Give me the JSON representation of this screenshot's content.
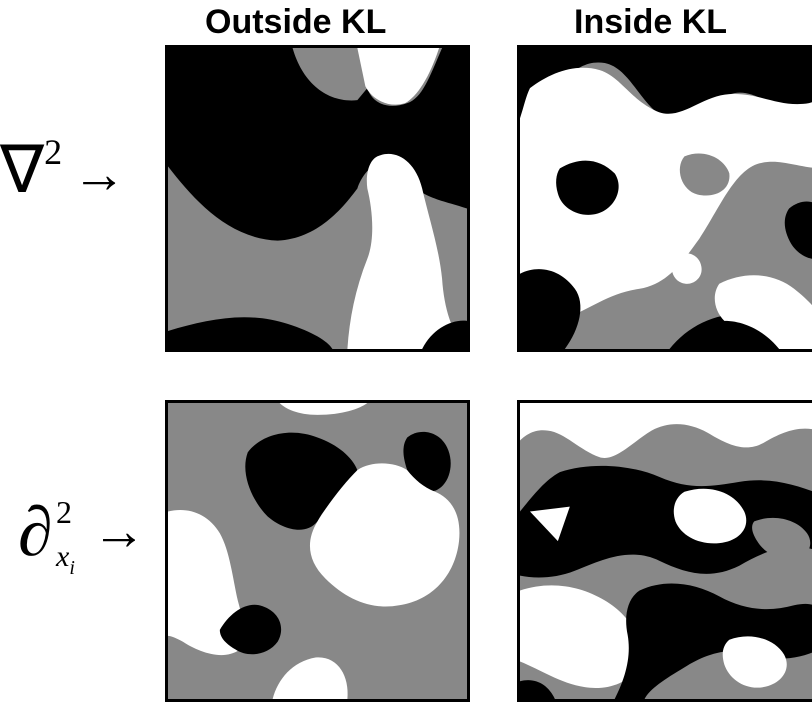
{
  "headers": {
    "outside": "Outside KL",
    "inside": "Inside KL"
  },
  "rows": {
    "laplacian": {
      "symbol": "∇",
      "superscript": "2",
      "arrow": "→"
    },
    "partial": {
      "symbol": "∂",
      "superscript": "2",
      "subscript_base": "x",
      "subscript_index": "i",
      "arrow": "→"
    }
  },
  "colors": {
    "black": "#000000",
    "gray": "#888888",
    "white": "#ffffff"
  }
}
